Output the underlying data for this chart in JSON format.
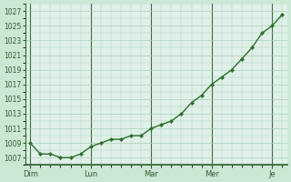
{
  "background_color": "#cce8d4",
  "plot_bg_color": "#dff0e8",
  "grid_color_minor": "#aacfb8",
  "grid_color_major_x": "#3a6e3a",
  "line_color": "#2d6e2d",
  "marker_color": "#2d6e2d",
  "axis_label_color": "#2d5c2d",
  "tick_label_color": "#2d5c2d",
  "ylim": [
    1006,
    1028
  ],
  "yticks": [
    1007,
    1009,
    1011,
    1013,
    1015,
    1017,
    1019,
    1021,
    1023,
    1025,
    1027
  ],
  "day_labels": [
    "Dim",
    "Lun",
    "Mar",
    "Mer",
    "Je"
  ],
  "day_positions": [
    0,
    24,
    48,
    72,
    96
  ],
  "x_values": [
    0,
    4,
    8,
    12,
    16,
    20,
    24,
    28,
    32,
    36,
    40,
    44,
    48,
    52,
    56,
    60,
    64,
    68,
    72,
    76,
    80,
    84,
    88,
    92,
    96,
    100
  ],
  "y_values": [
    1009,
    1007.5,
    1007.5,
    1007,
    1007,
    1007.5,
    1008.5,
    1009,
    1009.5,
    1009.5,
    1010,
    1010,
    1011,
    1011.5,
    1012,
    1013,
    1014.5,
    1015.5,
    1017,
    1018,
    1019,
    1020.5,
    1022,
    1024,
    1025,
    1026.5
  ]
}
